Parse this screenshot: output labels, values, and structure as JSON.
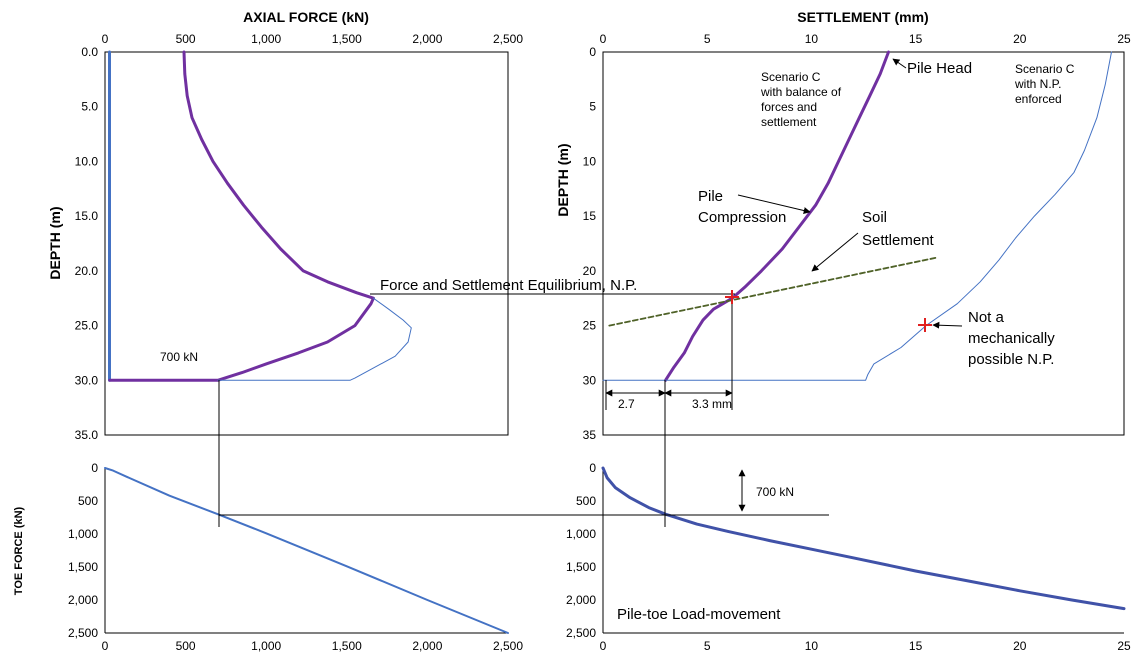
{
  "chart_data": [
    {
      "panel": "axial",
      "type": "line",
      "title": "AXIAL FORCE (kN)",
      "ylabel": "DEPTH (m)",
      "xlim": [
        0,
        2500
      ],
      "ylim": [
        0,
        35
      ],
      "x_ticks": [
        "0",
        "500",
        "1,000",
        "1,500",
        "2,000",
        "2,500"
      ],
      "y_ticks": [
        "0.0",
        "5.0",
        "10.0",
        "15.0",
        "20.0",
        "25.0",
        "30.0",
        "35.0"
      ],
      "series": [
        {
          "color": "#4472C4",
          "style": "thick",
          "points": [
            [
              28,
              0
            ],
            [
              28,
              30
            ]
          ]
        },
        {
          "color": "#7030A0",
          "style": "thick",
          "points": [
            [
              490,
              0
            ],
            [
              495,
              2
            ],
            [
              510,
              4
            ],
            [
              540,
              6
            ],
            [
              600,
              8
            ],
            [
              670,
              10
            ],
            [
              760,
              12
            ],
            [
              860,
              14
            ],
            [
              970,
              16
            ],
            [
              1090,
              18
            ],
            [
              1230,
              20
            ],
            [
              1380,
              21
            ],
            [
              1560,
              22
            ],
            [
              1665,
              22.5
            ],
            [
              1650,
              23
            ],
            [
              1550,
              25
            ],
            [
              1380,
              26.5
            ],
            [
              1200,
              27.5
            ],
            [
              1000,
              28.5
            ],
            [
              850,
              29.3
            ],
            [
              700,
              30
            ],
            [
              30,
              30
            ]
          ]
        },
        {
          "color": "#4472C4",
          "style": "thin",
          "points": [
            [
              1665,
              22.5
            ],
            [
              1760,
              23.5
            ],
            [
              1850,
              24.5
            ],
            [
              1900,
              25.2
            ],
            [
              1880,
              26.5
            ],
            [
              1800,
              27.8
            ],
            [
              1650,
              29
            ],
            [
              1550,
              29.8
            ],
            [
              1520,
              30
            ],
            [
              700,
              30
            ]
          ]
        }
      ],
      "annotations": {
        "toe_label": "700 kN"
      }
    },
    {
      "panel": "settlement",
      "type": "line",
      "title": "SETTLEMENT (mm)",
      "ylabel": "DEPTH (m)",
      "xlim": [
        0,
        25
      ],
      "ylim": [
        0,
        35
      ],
      "x_ticks": [
        "0",
        "5",
        "10",
        "15",
        "20",
        "25"
      ],
      "y_ticks": [
        "0",
        "5",
        "10",
        "15",
        "20",
        "25",
        "30",
        "35"
      ],
      "series": [
        {
          "name": "Pile Compression",
          "color": "#7030A0",
          "style": "thick",
          "points": [
            [
              13.7,
              0
            ],
            [
              13.3,
              2
            ],
            [
              12.8,
              4
            ],
            [
              12.3,
              6
            ],
            [
              11.8,
              8
            ],
            [
              11.3,
              10
            ],
            [
              10.8,
              12
            ],
            [
              10.2,
              14
            ],
            [
              9.4,
              16
            ],
            [
              8.6,
              18
            ],
            [
              7.6,
              20
            ],
            [
              6.8,
              21.5
            ],
            [
              6.2,
              22.5
            ],
            [
              5.3,
              23.5
            ],
            [
              4.8,
              24.5
            ],
            [
              4.3,
              26
            ],
            [
              3.9,
              27.5
            ],
            [
              3.4,
              28.8
            ],
            [
              3.0,
              30
            ]
          ]
        },
        {
          "name": "Scenario C with N.P. enforced",
          "color": "#4472C4",
          "style": "thin",
          "points": [
            [
              24.4,
              0
            ],
            [
              24.1,
              3
            ],
            [
              23.7,
              6
            ],
            [
              23.1,
              9
            ],
            [
              22.6,
              11
            ],
            [
              21.7,
              13
            ],
            [
              20.7,
              15
            ],
            [
              19.8,
              17
            ],
            [
              19.0,
              19
            ],
            [
              18.1,
              21
            ],
            [
              17.0,
              23
            ],
            [
              15.5,
              25
            ],
            [
              14.3,
              27
            ],
            [
              13.0,
              28.5
            ],
            [
              12.7,
              29.5
            ],
            [
              12.6,
              30
            ],
            [
              0,
              30
            ]
          ]
        },
        {
          "name": "Soil Settlement",
          "color": "#4F6228",
          "style": "dashed",
          "points": [
            [
              0.3,
              25
            ],
            [
              16,
              18.8
            ]
          ]
        }
      ],
      "annotations": {
        "pile_head": "Pile Head",
        "scenario_c_balance": [
          "Scenario C",
          "with balance of",
          "forces and",
          "settlement"
        ],
        "scenario_c_np": [
          "Scenario C",
          "with N.P.",
          "enforced"
        ],
        "pile_compression": [
          "Pile",
          "Compression"
        ],
        "soil_settlement": [
          "Soil",
          "Settlement"
        ],
        "not_np": [
          "Not a",
          "mechanically",
          "possible N.P."
        ],
        "dim_1": "2.7",
        "dim_2": "3.3 mm"
      }
    },
    {
      "panel": "toe_force",
      "type": "line",
      "ylabel": "TOE FORCE (kN)",
      "xlim": [
        0,
        2500
      ],
      "ylim": [
        0,
        2500
      ],
      "x_ticks": [
        "0",
        "500",
        "1,000",
        "1,500",
        "2,000",
        "2,500"
      ],
      "y_ticks": [
        "0",
        "500",
        "1,000",
        "1,500",
        "2,000",
        "2,500"
      ],
      "series": [
        {
          "color": "#4472C4",
          "style": "medium",
          "points": [
            [
              0,
              0
            ],
            [
              50,
              40
            ],
            [
              150,
              150
            ],
            [
              400,
              420
            ],
            [
              700,
              700
            ],
            [
              1000,
              990
            ],
            [
              1500,
              1490
            ],
            [
              2000,
              2000
            ],
            [
              2500,
              2500
            ]
          ]
        }
      ]
    },
    {
      "panel": "toe_movement",
      "type": "line",
      "xlim": [
        0,
        25
      ],
      "ylim": [
        0,
        2500
      ],
      "x_ticks": [
        "0",
        "5",
        "10",
        "15",
        "20",
        "25"
      ],
      "y_ticks": [
        "0",
        "500",
        "1,000",
        "1,500",
        "2,000",
        "2,500"
      ],
      "series": [
        {
          "name": "Pile-toe Load-movement",
          "color": "#4052A8",
          "style": "thick",
          "points": [
            [
              0,
              0
            ],
            [
              0.2,
              150
            ],
            [
              0.6,
              300
            ],
            [
              1.3,
              450
            ],
            [
              2.2,
              600
            ],
            [
              3.0,
              700
            ],
            [
              4.5,
              850
            ],
            [
              6,
              960
            ],
            [
              8,
              1100
            ],
            [
              10,
              1230
            ],
            [
              12,
              1360
            ],
            [
              15,
              1560
            ],
            [
              17,
              1680
            ],
            [
              20,
              1860
            ],
            [
              22.5,
              2000
            ],
            [
              25,
              2130
            ]
          ]
        }
      ],
      "annotations": {
        "label": "Pile-toe Load-movement",
        "force_bracket": "700 kN"
      }
    }
  ],
  "equilibrium_label": "Force and Settlement Equilibrium, N.P."
}
